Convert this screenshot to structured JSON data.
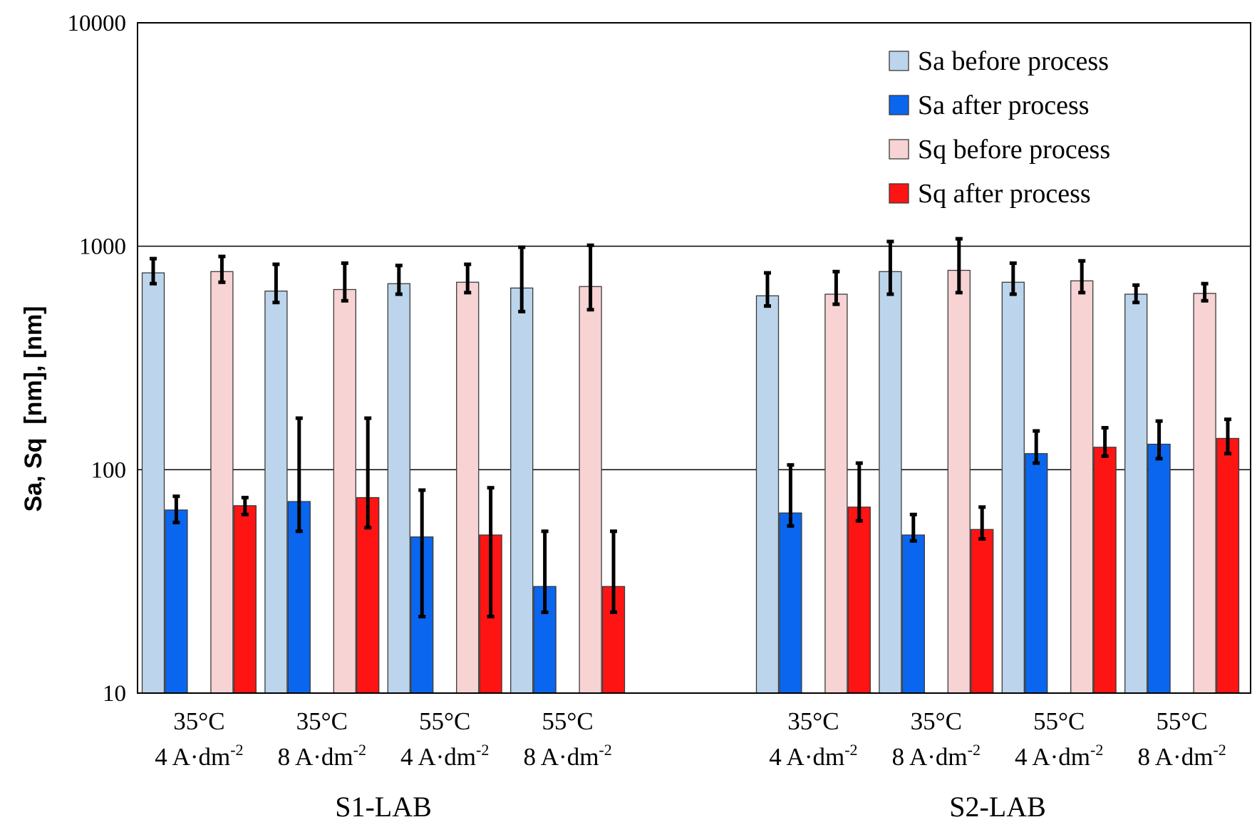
{
  "chart_data": {
    "type": "bar",
    "yscale": "log",
    "ylim": [
      10,
      10000
    ],
    "yticks": [
      "10",
      "100",
      "1000",
      "10000"
    ],
    "ylabel": "Sa, Sq  [nm], [nm]",
    "grid": "major horizontal at 100 and 1000",
    "legend_position": "top-right",
    "colors": {
      "Sa before process": "#bcd5ec",
      "Sa after process": "#0a66ee",
      "Sq before process": "#f8d3d3",
      "Sq after process": "#ff1414"
    },
    "groups": [
      {
        "label": "S1-LAB",
        "categories": [
          [
            "35°C",
            "4 A·dm",
            "-2"
          ],
          [
            "35°C",
            "8 A·dm",
            "-2"
          ],
          [
            "55°C",
            "4 A·dm",
            "-2"
          ],
          [
            "55°C",
            "8 A·dm",
            "-2"
          ]
        ]
      },
      {
        "label": "S2-LAB",
        "categories": [
          [
            "35°C",
            "4 A·dm",
            "-2"
          ],
          [
            "35°C",
            "8 A·dm",
            "-2"
          ],
          [
            "55°C",
            "4 A·dm",
            "-2"
          ],
          [
            "55°C",
            "8 A·dm",
            "-2"
          ]
        ]
      }
    ],
    "series": [
      {
        "name": "Sa before process",
        "values": [
          760,
          630,
          680,
          650,
          600,
          770,
          690,
          610
        ],
        "err_low": [
          680,
          560,
          610,
          510,
          540,
          610,
          610,
          560
        ],
        "err_high": [
          880,
          830,
          820,
          990,
          760,
          1050,
          840,
          670
        ]
      },
      {
        "name": "Sa after process",
        "values": [
          66,
          72,
          50,
          30,
          64,
          51,
          118,
          130
        ],
        "err_low": [
          58,
          53,
          22,
          23,
          56,
          48,
          107,
          112
        ],
        "err_high": [
          76,
          170,
          81,
          53,
          105,
          63,
          149,
          165
        ]
      },
      {
        "name": "Sq before process",
        "values": [
          770,
          640,
          690,
          660,
          610,
          780,
          700,
          615
        ],
        "err_low": [
          690,
          570,
          620,
          520,
          550,
          620,
          620,
          570
        ],
        "err_high": [
          900,
          840,
          830,
          1010,
          770,
          1080,
          860,
          680
        ]
      },
      {
        "name": "Sq after process",
        "values": [
          69,
          75,
          51,
          30,
          68,
          54,
          126,
          138
        ],
        "err_low": [
          63,
          55,
          22,
          23,
          59,
          49,
          115,
          118
        ],
        "err_high": [
          75,
          170,
          83,
          53,
          107,
          68,
          154,
          168
        ]
      }
    ]
  }
}
